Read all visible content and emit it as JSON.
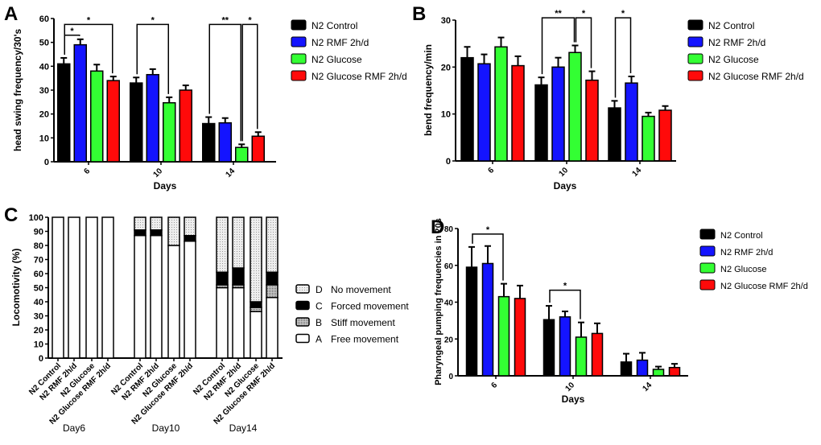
{
  "colors": {
    "N2 Control": "#000000",
    "N2 RMF 2h/d": "#1414ff",
    "N2 Glucose": "#33ff33",
    "N2 Glucose RMF 2h/d": "#ff0a0a"
  },
  "chart_data": [
    {
      "panel": "A",
      "type": "bar",
      "xlabel": "Days",
      "ylabel": "head swing frequency/30's",
      "categories": [
        "6",
        "10",
        "14"
      ],
      "ylim": [
        0,
        60
      ],
      "yticks": [
        0,
        10,
        20,
        30,
        40,
        50,
        60
      ],
      "legend_position": "right",
      "series": [
        {
          "name": "N2 Control",
          "values": [
            41,
            33,
            16
          ],
          "errors": [
            2.5,
            2.3,
            2.7
          ]
        },
        {
          "name": "N2 RMF 2h/d",
          "values": [
            49,
            36.5,
            16.3
          ],
          "errors": [
            2.3,
            2.3,
            2
          ]
        },
        {
          "name": "N2 Glucose",
          "values": [
            38,
            24.7,
            6
          ],
          "errors": [
            2.7,
            2.3,
            1.3
          ]
        },
        {
          "name": "N2 Glucose RMF 2h/d",
          "values": [
            34,
            30,
            10.7
          ],
          "errors": [
            1.7,
            2,
            1.7
          ]
        }
      ],
      "significance": [
        {
          "category": 0,
          "from": 0,
          "to": 1,
          "label": "*",
          "level": 53
        },
        {
          "category": 0,
          "from": 0,
          "to": 3,
          "label": "*",
          "level": 57.5
        },
        {
          "category": 1,
          "from": 0,
          "to": 2,
          "label": "*",
          "level": 57.5
        },
        {
          "category": 2,
          "from": 0,
          "to": 2,
          "label": "**",
          "level": 57.5
        },
        {
          "category": 2,
          "from": 2,
          "to": 3,
          "label": "*",
          "level": 57.5
        }
      ]
    },
    {
      "panel": "B",
      "type": "bar",
      "xlabel": "Days",
      "ylabel": "bend frequency/min",
      "categories": [
        "6",
        "10",
        "14"
      ],
      "ylim": [
        0,
        30
      ],
      "yticks": [
        0,
        10,
        20,
        30
      ],
      "legend_position": "right",
      "series": [
        {
          "name": "N2 Control",
          "values": [
            22,
            16.2,
            11.3
          ],
          "errors": [
            2.3,
            1.6,
            1.5
          ]
        },
        {
          "name": "N2 RMF 2h/d",
          "values": [
            20.7,
            20,
            16.6
          ],
          "errors": [
            2,
            2,
            1.4
          ]
        },
        {
          "name": "N2 Glucose",
          "values": [
            24.3,
            23.1,
            9.5
          ],
          "errors": [
            2,
            1.5,
            0.8
          ]
        },
        {
          "name": "N2 Glucose RMF 2h/d",
          "values": [
            20.3,
            17.2,
            10.8
          ],
          "errors": [
            2,
            1.9,
            0.9
          ]
        }
      ],
      "significance": [
        {
          "category": 1,
          "from": 0,
          "to": 2,
          "label": "**",
          "level": 30.5
        },
        {
          "category": 1,
          "from": 2,
          "to": 3,
          "label": "*",
          "level": 30.5
        },
        {
          "category": 2,
          "from": 0,
          "to": 1,
          "label": "*",
          "level": 30.5
        }
      ]
    },
    {
      "panel": "C",
      "type": "stacked-bar",
      "ylabel": "Locomotivity (%)",
      "ylim": [
        0,
        100
      ],
      "yticks": [
        0,
        10,
        20,
        30,
        40,
        50,
        60,
        70,
        80,
        90,
        100
      ],
      "groups": [
        "Day6",
        "Day10",
        "Day14"
      ],
      "categories": [
        "N2 Control",
        "N2 RMF 2h/d",
        "N2 Glucose",
        "N2 Glucose RMF 2h/d"
      ],
      "legend_position": "right",
      "stack_series": [
        {
          "key": "D",
          "name": "No movement",
          "pattern": "light-dotted"
        },
        {
          "key": "C",
          "name": "Forced movement",
          "pattern": "black"
        },
        {
          "key": "B",
          "name": "Stiff movement",
          "pattern": "dotted"
        },
        {
          "key": "A",
          "name": "Free movement",
          "pattern": "white"
        }
      ],
      "values": [
        [
          {
            "A": 100,
            "B": 0,
            "C": 0,
            "D": 0
          },
          {
            "A": 100,
            "B": 0,
            "C": 0,
            "D": 0
          },
          {
            "A": 100,
            "B": 0,
            "C": 0,
            "D": 0
          },
          {
            "A": 100,
            "B": 0,
            "C": 0,
            "D": 0
          }
        ],
        [
          {
            "A": 87,
            "B": 0,
            "C": 4,
            "D": 9
          },
          {
            "A": 87,
            "B": 0,
            "C": 4,
            "D": 9
          },
          {
            "A": 80,
            "B": 0,
            "C": 0,
            "D": 20
          },
          {
            "A": 83,
            "B": 0,
            "C": 4,
            "D": 13
          }
        ],
        [
          {
            "A": 50,
            "B": 2,
            "C": 9,
            "D": 39
          },
          {
            "A": 50,
            "B": 2,
            "C": 12,
            "D": 36
          },
          {
            "A": 33,
            "B": 3,
            "C": 4,
            "D": 60
          },
          {
            "A": 43,
            "B": 9,
            "C": 9,
            "D": 39
          }
        ]
      ]
    },
    {
      "panel": "D",
      "type": "bar",
      "xlabel": "Days",
      "ylabel": "Pharyngeal pumping frequencies in 20s",
      "categories": [
        "6",
        "10",
        "14"
      ],
      "ylim": [
        0,
        80
      ],
      "yticks": [
        0,
        20,
        40,
        60,
        80
      ],
      "legend_position": "right",
      "series": [
        {
          "name": "N2 Control",
          "values": [
            59,
            30.5,
            7.5
          ],
          "errors": [
            11,
            7.5,
            4.5
          ]
        },
        {
          "name": "N2 RMF 2h/d",
          "values": [
            61,
            32,
            8.5
          ],
          "errors": [
            9.5,
            3,
            4
          ]
        },
        {
          "name": "N2 Glucose",
          "values": [
            43,
            21,
            3.5
          ],
          "errors": [
            7,
            8,
            1.5
          ]
        },
        {
          "name": "N2 Glucose RMF 2h/d",
          "values": [
            42,
            23,
            4.5
          ],
          "errors": [
            7,
            5.5,
            2
          ]
        }
      ],
      "significance": [
        {
          "category": 0,
          "from": 0,
          "to": 2,
          "label": "*",
          "level": 77
        },
        {
          "category": 1,
          "from": 0,
          "to": 2,
          "label": "*",
          "level": 46.5
        }
      ]
    }
  ]
}
